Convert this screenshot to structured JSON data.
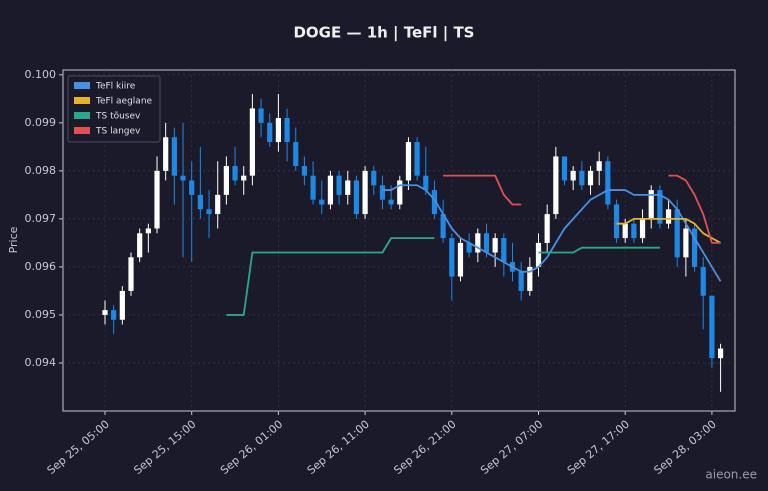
{
  "chart_data": {
    "type": "candlestick",
    "title": "DOGE — 1h  |  TeFl  |  TS",
    "y_label": "Price",
    "watermark": "aieon.ee",
    "x": [
      "Sep 25, 05:00",
      "Sep 25, 06:00",
      "Sep 25, 07:00",
      "Sep 25, 08:00",
      "Sep 25, 09:00",
      "Sep 25, 10:00",
      "Sep 25, 11:00",
      "Sep 25, 12:00",
      "Sep 25, 13:00",
      "Sep 25, 14:00",
      "Sep 25, 15:00",
      "Sep 25, 16:00",
      "Sep 25, 17:00",
      "Sep 25, 18:00",
      "Sep 25, 19:00",
      "Sep 25, 20:00",
      "Sep 25, 21:00",
      "Sep 25, 22:00",
      "Sep 25, 23:00",
      "Sep 26, 00:00",
      "Sep 26, 01:00",
      "Sep 26, 02:00",
      "Sep 26, 03:00",
      "Sep 26, 04:00",
      "Sep 26, 05:00",
      "Sep 26, 06:00",
      "Sep 26, 07:00",
      "Sep 26, 08:00",
      "Sep 26, 09:00",
      "Sep 26, 10:00",
      "Sep 26, 11:00",
      "Sep 26, 12:00",
      "Sep 26, 13:00",
      "Sep 26, 14:00",
      "Sep 26, 15:00",
      "Sep 26, 16:00",
      "Sep 26, 17:00",
      "Sep 26, 18:00",
      "Sep 26, 19:00",
      "Sep 26, 20:00",
      "Sep 26, 21:00",
      "Sep 26, 22:00",
      "Sep 26, 23:00",
      "Sep 27, 00:00",
      "Sep 27, 01:00",
      "Sep 27, 02:00",
      "Sep 27, 03:00",
      "Sep 27, 04:00",
      "Sep 27, 05:00",
      "Sep 27, 06:00",
      "Sep 27, 07:00",
      "Sep 27, 08:00",
      "Sep 27, 09:00",
      "Sep 27, 10:00",
      "Sep 27, 11:00",
      "Sep 27, 12:00",
      "Sep 27, 13:00",
      "Sep 27, 14:00",
      "Sep 27, 15:00",
      "Sep 27, 16:00",
      "Sep 27, 17:00",
      "Sep 27, 18:00",
      "Sep 27, 19:00",
      "Sep 27, 20:00",
      "Sep 27, 21:00",
      "Sep 27, 22:00",
      "Sep 27, 23:00",
      "Sep 28, 00:00",
      "Sep 28, 01:00",
      "Sep 28, 02:00",
      "Sep 28, 03:00",
      "Sep 28, 04:00"
    ],
    "xticks": [
      "Sep 25, 05:00",
      "Sep 25, 15:00",
      "Sep 26, 01:00",
      "Sep 26, 11:00",
      "Sep 26, 21:00",
      "Sep 27, 07:00",
      "Sep 27, 17:00",
      "Sep 28, 03:00"
    ],
    "open": [
      0.095,
      0.0951,
      0.0949,
      0.0955,
      0.0962,
      0.0967,
      0.0968,
      0.098,
      0.0987,
      0.0979,
      0.0978,
      0.0975,
      0.0972,
      0.0971,
      0.0975,
      0.0981,
      0.0978,
      0.0979,
      0.0993,
      0.099,
      0.0986,
      0.0991,
      0.0986,
      0.0981,
      0.0979,
      0.0974,
      0.0973,
      0.0979,
      0.0975,
      0.0978,
      0.0971,
      0.098,
      0.0977,
      0.0974,
      0.0973,
      0.0978,
      0.0986,
      0.0979,
      0.0976,
      0.0971,
      0.0966,
      0.0958,
      0.0965,
      0.0963,
      0.0967,
      0.0963,
      0.0966,
      0.0961,
      0.0959,
      0.0955,
      0.096,
      0.0965,
      0.0971,
      0.0983,
      0.0978,
      0.098,
      0.0977,
      0.098,
      0.0982,
      0.0973,
      0.0966,
      0.0969,
      0.0966,
      0.097,
      0.0976,
      0.0969,
      0.0972,
      0.0962,
      0.0968,
      0.096,
      0.0954,
      0.0941
    ],
    "high": [
      0.0953,
      0.0952,
      0.0956,
      0.0963,
      0.0968,
      0.0969,
      0.0983,
      0.099,
      0.0989,
      0.099,
      0.0982,
      0.0985,
      0.0976,
      0.0982,
      0.0983,
      0.0985,
      0.0981,
      0.0996,
      0.0995,
      0.0992,
      0.0996,
      0.0993,
      0.0989,
      0.0983,
      0.0982,
      0.0978,
      0.098,
      0.098,
      0.098,
      0.0979,
      0.0981,
      0.0981,
      0.0979,
      0.0977,
      0.0979,
      0.0987,
      0.0987,
      0.0985,
      0.0978,
      0.0974,
      0.0967,
      0.0966,
      0.0967,
      0.0968,
      0.0969,
      0.0967,
      0.0967,
      0.0965,
      0.0961,
      0.0962,
      0.0967,
      0.0973,
      0.0985,
      0.0983,
      0.0981,
      0.0982,
      0.0981,
      0.0984,
      0.0983,
      0.0974,
      0.097,
      0.097,
      0.0972,
      0.0977,
      0.0977,
      0.0974,
      0.0974,
      0.097,
      0.0969,
      0.0962,
      0.0954,
      0.0944
    ],
    "low": [
      0.0948,
      0.0946,
      0.0948,
      0.0954,
      0.0961,
      0.0963,
      0.0967,
      0.0978,
      0.0973,
      0.0962,
      0.0961,
      0.097,
      0.0966,
      0.0968,
      0.0973,
      0.0977,
      0.0975,
      0.0977,
      0.0987,
      0.0985,
      0.0984,
      0.0982,
      0.098,
      0.0977,
      0.0973,
      0.0971,
      0.0972,
      0.0973,
      0.0973,
      0.097,
      0.097,
      0.0975,
      0.0972,
      0.0972,
      0.0972,
      0.0976,
      0.0978,
      0.0975,
      0.097,
      0.0965,
      0.0953,
      0.0957,
      0.0962,
      0.0961,
      0.0962,
      0.096,
      0.0958,
      0.0957,
      0.0953,
      0.0954,
      0.0958,
      0.0963,
      0.097,
      0.0977,
      0.0976,
      0.0976,
      0.0975,
      0.0977,
      0.0972,
      0.0965,
      0.0965,
      0.0965,
      0.0965,
      0.0968,
      0.0968,
      0.0968,
      0.096,
      0.0958,
      0.0959,
      0.0947,
      0.0939,
      0.0934
    ],
    "close": [
      0.0951,
      0.0949,
      0.0955,
      0.0962,
      0.0967,
      0.0968,
      0.098,
      0.0987,
      0.0979,
      0.0978,
      0.0975,
      0.0972,
      0.0971,
      0.0975,
      0.0981,
      0.0978,
      0.0979,
      0.0993,
      0.099,
      0.0986,
      0.0991,
      0.0986,
      0.0981,
      0.0979,
      0.0974,
      0.0973,
      0.0979,
      0.0975,
      0.0978,
      0.0971,
      0.098,
      0.0977,
      0.0974,
      0.0973,
      0.0978,
      0.0986,
      0.0979,
      0.0976,
      0.0971,
      0.0966,
      0.0958,
      0.0965,
      0.0963,
      0.0967,
      0.0963,
      0.0966,
      0.0961,
      0.0959,
      0.0955,
      0.096,
      0.0965,
      0.0971,
      0.0983,
      0.0978,
      0.098,
      0.0977,
      0.098,
      0.0982,
      0.0973,
      0.0966,
      0.0969,
      0.0966,
      0.097,
      0.0976,
      0.0969,
      0.0972,
      0.0962,
      0.0968,
      0.096,
      0.0954,
      0.0941,
      0.0943
    ],
    "up_color": "#ffffff",
    "down_color": "#1e88e5",
    "series": [
      {
        "name": "TeFl kiire",
        "color": "#4a90e2",
        "values": [
          null,
          null,
          null,
          null,
          null,
          null,
          null,
          null,
          null,
          null,
          null,
          null,
          null,
          null,
          null,
          null,
          null,
          null,
          null,
          null,
          null,
          null,
          null,
          null,
          null,
          null,
          null,
          null,
          null,
          null,
          null,
          null,
          0.0976,
          0.0976,
          0.0977,
          0.0977,
          0.0977,
          0.0976,
          0.0974,
          0.0971,
          0.0968,
          0.0966,
          0.0965,
          0.0964,
          0.0963,
          0.0962,
          0.0961,
          0.096,
          0.0959,
          0.0959,
          0.096,
          0.0962,
          0.0965,
          0.0968,
          0.097,
          0.0972,
          0.0974,
          0.0975,
          0.0976,
          0.0976,
          0.0976,
          0.0975,
          0.0975,
          0.0975,
          0.0975,
          0.0974,
          0.0972,
          0.0969,
          0.0966,
          0.0963,
          0.096,
          0.0957
        ]
      },
      {
        "name": "TeFl aeglane",
        "color": "#e8b22a",
        "values": [
          null,
          null,
          null,
          null,
          null,
          null,
          null,
          null,
          null,
          null,
          null,
          null,
          null,
          null,
          null,
          null,
          null,
          null,
          null,
          null,
          null,
          null,
          null,
          null,
          null,
          null,
          null,
          null,
          null,
          null,
          null,
          null,
          null,
          null,
          null,
          null,
          null,
          null,
          null,
          null,
          null,
          null,
          null,
          null,
          null,
          null,
          null,
          null,
          null,
          null,
          null,
          null,
          null,
          null,
          null,
          null,
          null,
          null,
          null,
          0.0969,
          0.0969,
          0.097,
          0.097,
          0.097,
          0.097,
          0.097,
          0.097,
          0.097,
          0.0969,
          0.0967,
          0.0966,
          0.0965
        ]
      },
      {
        "name": "TS tõusev",
        "color": "#2aa98a",
        "values": [
          null,
          null,
          null,
          null,
          null,
          null,
          null,
          null,
          null,
          null,
          null,
          null,
          null,
          null,
          0.095,
          0.095,
          0.095,
          0.0963,
          0.0963,
          0.0963,
          0.0963,
          0.0963,
          0.0963,
          0.0963,
          0.0963,
          0.0963,
          0.0963,
          0.0963,
          0.0963,
          0.0963,
          0.0963,
          0.0963,
          0.0963,
          0.0966,
          0.0966,
          0.0966,
          0.0966,
          0.0966,
          0.0966,
          null,
          null,
          null,
          null,
          null,
          null,
          null,
          null,
          null,
          null,
          null,
          0.0963,
          0.0963,
          0.0963,
          0.0963,
          0.0963,
          0.0964,
          0.0964,
          0.0964,
          0.0964,
          0.0964,
          0.0964,
          0.0964,
          0.0964,
          0.0964,
          0.0964,
          null,
          null,
          null,
          null,
          null,
          null,
          null
        ]
      },
      {
        "name": "TS langev",
        "color": "#e05252",
        "values": [
          null,
          null,
          null,
          null,
          null,
          null,
          null,
          null,
          null,
          null,
          null,
          null,
          null,
          null,
          null,
          null,
          null,
          null,
          null,
          null,
          null,
          null,
          null,
          null,
          null,
          null,
          null,
          null,
          null,
          null,
          null,
          null,
          null,
          null,
          null,
          null,
          null,
          null,
          null,
          0.0979,
          0.0979,
          0.0979,
          0.0979,
          0.0979,
          0.0979,
          0.0979,
          0.0975,
          0.0973,
          0.0973,
          null,
          null,
          null,
          null,
          null,
          null,
          null,
          null,
          null,
          null,
          null,
          null,
          null,
          null,
          null,
          null,
          0.0979,
          0.0979,
          0.0978,
          0.0975,
          0.0971,
          0.0965,
          0.0965
        ]
      }
    ],
    "ylim": [
      0.093,
      0.1001
    ],
    "yticks": [
      0.094,
      0.095,
      0.096,
      0.097,
      0.098,
      0.099,
      {
        "value": 0.1,
        "label": "0.100"
      }
    ],
    "grid": true,
    "legend": "upper left"
  }
}
